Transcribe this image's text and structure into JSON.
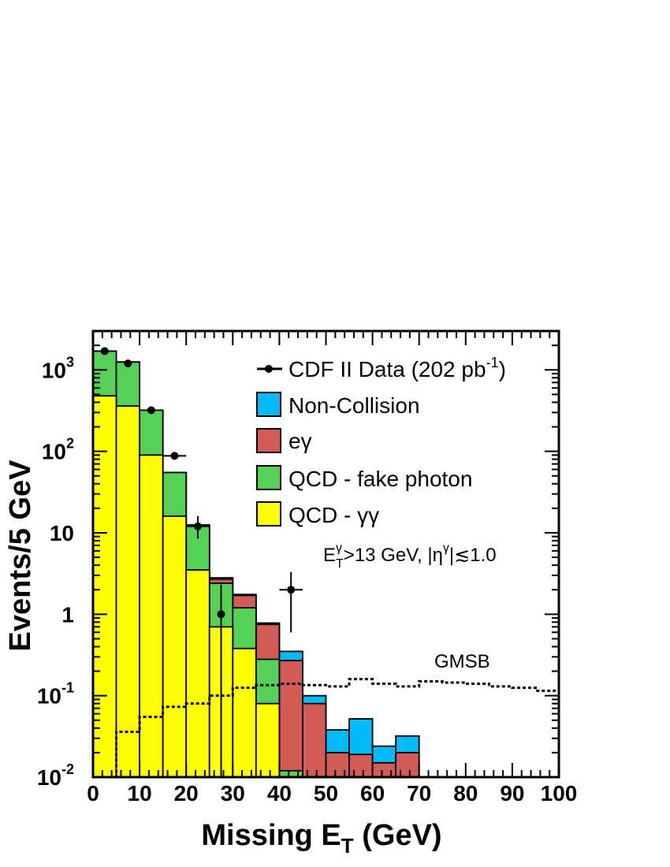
{
  "chart_data": {
    "type": "histogram",
    "x_bin_edges": [
      0,
      5,
      10,
      15,
      20,
      25,
      30,
      35,
      40,
      45,
      50,
      55,
      60,
      65,
      70,
      75,
      80,
      85,
      90,
      95,
      100
    ],
    "xlim": [
      0,
      100
    ],
    "ylim": [
      0.01,
      3000
    ],
    "y_scale": "log",
    "x_ticks": [
      0,
      10,
      20,
      30,
      40,
      50,
      60,
      70,
      80,
      90,
      100
    ],
    "y_tick_labels": [
      {
        "value": 1000,
        "base": "10",
        "exp": "3"
      },
      {
        "value": 100,
        "base": "10",
        "exp": "2"
      },
      {
        "value": 10,
        "base": "10",
        "exp": ""
      },
      {
        "value": 1,
        "base": "1",
        "exp": ""
      },
      {
        "value": 0.1,
        "base": "10",
        "exp": "-1"
      },
      {
        "value": 0.01,
        "base": "10",
        "exp": "-2"
      }
    ],
    "xlabel": {
      "main": "Missing E",
      "sub": "T",
      "suffix": " (GeV)"
    },
    "ylabel": "Events/5 GeV",
    "stack_series": [
      {
        "name": "QCD - γγ",
        "color": "#ffff00",
        "values": [
          480,
          360,
          90,
          16,
          3.5,
          0.7,
          0.38,
          0.08,
          0,
          0,
          0,
          0,
          0,
          0,
          0,
          0,
          0,
          0,
          0,
          0
        ]
      },
      {
        "name": "QCD - fake photon",
        "color": "#55d155",
        "values": [
          1700,
          1250,
          320,
          55,
          12,
          2.4,
          1.2,
          0.28,
          0.012,
          0,
          0,
          0,
          0,
          0,
          0,
          0,
          0,
          0,
          0,
          0
        ]
      },
      {
        "name": "eγ",
        "color": "#d25b55",
        "values": [
          1700,
          1250,
          320,
          55,
          12,
          2.7,
          1.7,
          0.75,
          0.27,
          0.08,
          0.02,
          0.019,
          0.015,
          0.02,
          0,
          0,
          0,
          0,
          0,
          0
        ]
      },
      {
        "name": "Non-Collision",
        "color": "#00bbf8",
        "values": [
          1700,
          1250,
          320,
          55,
          12.5,
          2.8,
          1.75,
          0.78,
          0.35,
          0.1,
          0.038,
          0.052,
          0.024,
          0.032,
          0,
          0,
          0,
          0,
          0,
          0
        ]
      }
    ],
    "gmsb": {
      "name": "GMSB",
      "values": [
        0.01,
        0.036,
        0.055,
        0.073,
        0.08,
        0.1,
        0.125,
        0.135,
        0.14,
        0.135,
        0.13,
        0.16,
        0.14,
        0.13,
        0.15,
        0.145,
        0.14,
        0.13,
        0.125,
        0.115
      ]
    },
    "data_points": {
      "name": "CDF II Data (202 pb-1)",
      "points": [
        {
          "x": 2.5,
          "y": 1700,
          "yerr": [
            1650,
            1750
          ]
        },
        {
          "x": 7.5,
          "y": 1200,
          "yerr": [
            1160,
            1240
          ]
        },
        {
          "x": 12.5,
          "y": 320,
          "yerr": [
            302,
            338
          ]
        },
        {
          "x": 17.5,
          "y": 88,
          "yerr": [
            79,
            97
          ],
          "xerr": [
            15,
            20
          ]
        },
        {
          "x": 22.5,
          "y": 12,
          "yerr": [
            8.5,
            16
          ]
        },
        {
          "x": 27.5,
          "y": 1,
          "yerr": [
            0.01,
            2.3
          ]
        },
        {
          "x": 42.5,
          "y": 2,
          "yerr": [
            0.6,
            3.3
          ],
          "xerr": [
            40,
            45
          ]
        }
      ]
    },
    "legend": {
      "placement": "top-right",
      "entries": [
        {
          "label": "CDF II Data (202 pb",
          "sup": "-1",
          "tail": ")",
          "kind": "data"
        },
        {
          "label": "Non-Collision",
          "kind": "box",
          "color": "#00bbf8"
        },
        {
          "label": "eγ",
          "kind": "box",
          "color": "#d25b55"
        },
        {
          "label": "QCD - fake photon",
          "kind": "box",
          "color": "#55d155"
        },
        {
          "label": "QCD - γγ",
          "kind": "box",
          "color": "#ffff00"
        }
      ]
    },
    "annotation": {
      "p1": "E",
      "p1_sup": "γ",
      "p1_sub": "T",
      "p2": ">13 GeV, |η",
      "p2_sup": "γ",
      "p3": "|≲1.0"
    },
    "grid": false
  }
}
